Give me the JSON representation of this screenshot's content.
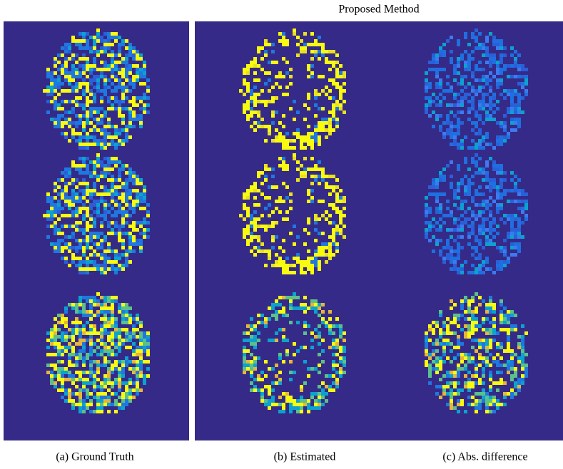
{
  "header": {
    "title": "Proposed Method"
  },
  "captions": [
    "(a) Ground Truth",
    "(b) Estimated",
    "(c) Abs. difference"
  ]
}
